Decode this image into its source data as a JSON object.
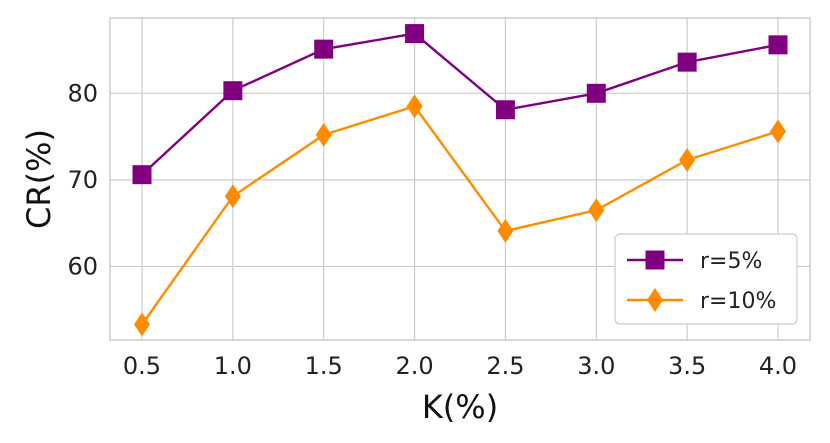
{
  "chart_data": {
    "type": "line",
    "x": [
      0.5,
      1.0,
      1.5,
      2.0,
      2.5,
      3.0,
      3.5,
      4.0
    ],
    "x_tick_labels": [
      "0.5",
      "1.0",
      "1.5",
      "2.0",
      "2.5",
      "3.0",
      "3.5",
      "4.0"
    ],
    "y_ticks": [
      60,
      70,
      80
    ],
    "y_tick_labels": [
      "60",
      "70",
      "80"
    ],
    "xlabel": "K(%)",
    "ylabel": "CR(%)",
    "ylim": [
      51.5,
      88.7
    ],
    "grid": true,
    "legend": "lower-right",
    "series": [
      {
        "name": "r=5%",
        "color": "#800080",
        "marker": "square",
        "values": [
          70.6,
          80.3,
          85.1,
          86.9,
          78.1,
          80.0,
          83.6,
          85.6
        ]
      },
      {
        "name": "r=10%",
        "color": "#ff8c00",
        "marker": "diamond",
        "values": [
          53.3,
          68.1,
          75.2,
          78.5,
          64.1,
          66.5,
          72.3,
          75.6
        ]
      }
    ]
  }
}
